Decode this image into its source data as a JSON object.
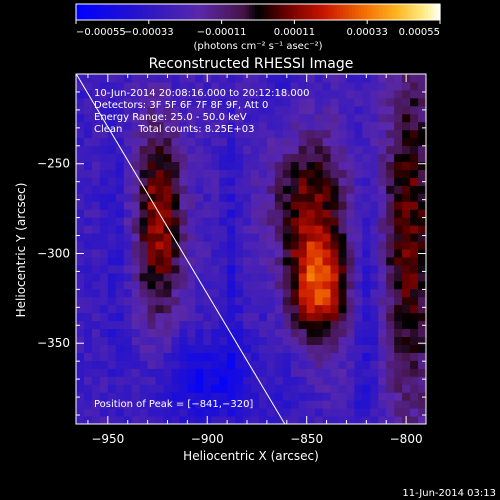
{
  "chart_data": {
    "type": "heatmap",
    "title": "Reconstructed RHESSI Image",
    "xlabel": "Heliocentric X (arcsec)",
    "ylabel": "Heliocentric Y (arcsec)",
    "xlim": [
      -966,
      -790
    ],
    "ylim": [
      -395,
      -200
    ],
    "xticks": [
      {
        "value": -950,
        "label": "−950"
      },
      {
        "value": -900,
        "label": "−900"
      },
      {
        "value": -850,
        "label": "−850"
      },
      {
        "value": -800,
        "label": "−800"
      }
    ],
    "yticks": [
      {
        "value": -250,
        "label": "−250"
      },
      {
        "value": -300,
        "label": "−300"
      },
      {
        "value": -350,
        "label": "−350"
      }
    ],
    "colorbar": {
      "min": -0.00055,
      "max": 0.00055,
      "tick_labels": [
        "−0.00055",
        "−0.00033",
        "−0.00011",
        "0.00011",
        "0.00033",
        "0.00055"
      ],
      "unit_label": "(photons cm⁻² s⁻¹ asec⁻²)"
    },
    "info_lines": [
      "10-Jun-2014 20:08:16.000 to 20:12:18.000",
      "Detectors: 3F 5F 6F 7F 8F 9F, Att 0",
      "Energy Range: 25.0 - 50.0 keV",
      "Clean     Total counts: 8.25E+03"
    ],
    "peak_text": "Position of Peak = [−841,−320]",
    "peak": [
      -841,
      -320
    ],
    "sources": [
      {
        "x": -924,
        "y": -282,
        "sx": 9,
        "sy": 42,
        "amp": 0.00045
      },
      {
        "x": -851,
        "y": -268,
        "sx": 14,
        "sy": 26,
        "amp": 0.00034
      },
      {
        "x": -845,
        "y": -318,
        "sx": 11,
        "sy": 22,
        "amp": 0.00053
      },
      {
        "x": -799,
        "y": -290,
        "sx": 10,
        "sy": 80,
        "amp": 0.00038
      },
      {
        "x": -888,
        "y": -310,
        "sx": 4,
        "sy": 60,
        "amp": -0.00012
      },
      {
        "x": -945,
        "y": -300,
        "sx": 6,
        "sy": 70,
        "amp": -0.0001
      },
      {
        "x": -820,
        "y": -330,
        "sx": 5,
        "sy": 60,
        "amp": -0.00012
      },
      {
        "x": -900,
        "y": -370,
        "sx": 15,
        "sy": 15,
        "amp": -0.0002
      }
    ],
    "limb_line": [
      [
        -968,
        -196
      ],
      [
        -861,
        -395
      ]
    ]
  },
  "footer": {
    "timestamp": "11-Jun-2014 03:13"
  }
}
